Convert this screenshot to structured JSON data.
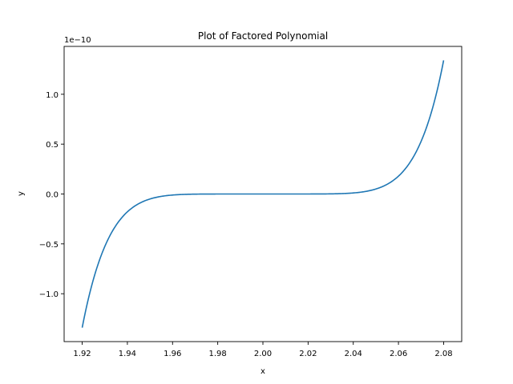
{
  "chart_data": {
    "type": "line",
    "title": "Plot of Factored Polynomial",
    "xlabel": "x",
    "ylabel": "y",
    "y_multiplier": "1e−10",
    "xlim": [
      1.912,
      2.088
    ],
    "ylim": [
      -1.48,
      1.48
    ],
    "xticks": [
      1.92,
      1.94,
      1.96,
      1.98,
      2.0,
      2.02,
      2.04,
      2.06,
      2.08
    ],
    "xtick_labels": [
      "1.92",
      "1.94",
      "1.96",
      "1.98",
      "2.00",
      "2.02",
      "2.04",
      "2.06",
      "2.08"
    ],
    "yticks": [
      -1.0,
      -0.5,
      0.0,
      0.5,
      1.0
    ],
    "ytick_labels": [
      "−1.0",
      "−0.5",
      "0.0",
      "0.5",
      "1.0"
    ],
    "grid": false,
    "series": [
      {
        "color": "#1f77b4",
        "x": [
          1.92,
          1.925,
          1.93,
          1.935,
          1.94,
          1.945,
          1.95,
          1.96,
          1.97,
          1.98,
          2.0,
          2.02,
          2.03,
          2.04,
          2.05,
          2.055,
          2.06,
          2.065,
          2.07,
          2.075,
          2.08
        ],
        "y": [
          -1.34,
          -0.75,
          -0.38,
          -0.17,
          -0.07,
          -0.03,
          -0.01,
          -0.002,
          0.0,
          0.0,
          0.0,
          0.0,
          0.0,
          0.002,
          0.01,
          0.03,
          0.07,
          0.17,
          0.38,
          0.75,
          1.34
        ]
      }
    ]
  }
}
